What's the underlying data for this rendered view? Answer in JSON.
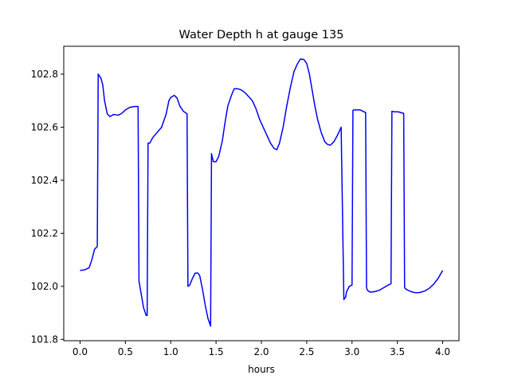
{
  "chart_data": {
    "type": "line",
    "title": "Water Depth h at gauge 135",
    "xlabel": "hours",
    "ylabel": "",
    "xlim": [
      -0.18,
      4.18
    ],
    "ylim": [
      101.795,
      102.905
    ],
    "xticks": [
      0.0,
      0.5,
      1.0,
      1.5,
      2.0,
      2.5,
      3.0,
      3.5,
      4.0
    ],
    "xtick_labels": [
      "0.0",
      "0.5",
      "1.0",
      "1.5",
      "2.0",
      "2.5",
      "3.0",
      "3.5",
      "4.0"
    ],
    "yticks": [
      101.8,
      102.0,
      102.2,
      102.4,
      102.6,
      102.8
    ],
    "ytick_labels": [
      "101.8",
      "102.0",
      "102.2",
      "102.4",
      "102.6",
      "102.8"
    ],
    "grid": false,
    "legend": "none",
    "series": [
      {
        "color": "#0000ff",
        "x": [
          0.0,
          0.05,
          0.1,
          0.13,
          0.16,
          0.19,
          0.2,
          0.23,
          0.25,
          0.27,
          0.3,
          0.33,
          0.37,
          0.42,
          0.46,
          0.5,
          0.55,
          0.6,
          0.64,
          0.65,
          0.67,
          0.7,
          0.73,
          0.74,
          0.75,
          0.77,
          0.8,
          0.85,
          0.9,
          0.95,
          0.98,
          1.0,
          1.04,
          1.07,
          1.1,
          1.14,
          1.18,
          1.19,
          1.21,
          1.24,
          1.27,
          1.3,
          1.32,
          1.35,
          1.38,
          1.41,
          1.44,
          1.45,
          1.47,
          1.5,
          1.53,
          1.57,
          1.6,
          1.63,
          1.67,
          1.7,
          1.74,
          1.78,
          1.82,
          1.86,
          1.9,
          1.94,
          1.98,
          2.02,
          2.06,
          2.1,
          2.14,
          2.17,
          2.2,
          2.24,
          2.28,
          2.32,
          2.36,
          2.4,
          2.43,
          2.47,
          2.5,
          2.53,
          2.56,
          2.59,
          2.62,
          2.66,
          2.7,
          2.73,
          2.76,
          2.8,
          2.84,
          2.88,
          2.91,
          2.93,
          2.94,
          2.97,
          3.0,
          3.01,
          3.02,
          3.05,
          3.09,
          3.12,
          3.15,
          3.16,
          3.17,
          3.2,
          3.25,
          3.3,
          3.35,
          3.4,
          3.43,
          3.44,
          3.47,
          3.51,
          3.54,
          3.57,
          3.58,
          3.6,
          3.65,
          3.7,
          3.75,
          3.8,
          3.85,
          3.9,
          3.95,
          4.0
        ],
        "y": [
          102.06,
          102.062,
          102.07,
          102.1,
          102.14,
          102.15,
          102.8,
          102.785,
          102.76,
          102.7,
          102.65,
          102.64,
          102.648,
          102.645,
          102.652,
          102.665,
          102.675,
          102.678,
          102.678,
          102.02,
          101.98,
          101.92,
          101.89,
          101.89,
          102.54,
          102.54,
          102.56,
          102.58,
          102.6,
          102.65,
          102.7,
          102.712,
          102.72,
          102.71,
          102.68,
          102.66,
          102.65,
          102.0,
          102.005,
          102.03,
          102.05,
          102.05,
          102.04,
          101.99,
          101.93,
          101.88,
          101.85,
          102.5,
          102.47,
          102.47,
          102.49,
          102.55,
          102.62,
          102.68,
          102.72,
          102.745,
          102.745,
          102.74,
          102.73,
          102.715,
          102.7,
          102.67,
          102.63,
          102.6,
          102.57,
          102.54,
          102.52,
          102.515,
          102.54,
          102.6,
          102.68,
          102.75,
          102.81,
          102.84,
          102.857,
          102.855,
          102.84,
          102.8,
          102.74,
          102.68,
          102.63,
          102.58,
          102.545,
          102.535,
          102.532,
          102.545,
          102.57,
          102.6,
          101.95,
          101.96,
          101.98,
          102.0,
          102.005,
          102.663,
          102.665,
          102.665,
          102.665,
          102.66,
          102.655,
          101.995,
          101.985,
          101.978,
          101.98,
          101.985,
          101.995,
          102.005,
          102.01,
          102.66,
          102.658,
          102.658,
          102.655,
          102.652,
          101.995,
          101.988,
          101.98,
          101.976,
          101.977,
          101.982,
          101.992,
          102.008,
          102.03,
          102.06
        ]
      }
    ]
  }
}
